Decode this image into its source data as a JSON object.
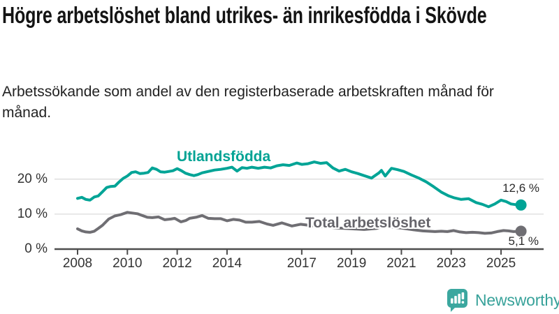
{
  "header": {
    "title": "Högre arbetslöshet bland utrikes- än inrikesfödda i Skövde",
    "subtitle": "Arbetssökande som andel av den registerbaserade arbetskraften månad för månad."
  },
  "chart_data": {
    "type": "line",
    "unit": "%",
    "x_range": [
      2008,
      2025.9
    ],
    "y_range": [
      0,
      26
    ],
    "grid": "horizontal",
    "y_ticks": [
      {
        "value": 20,
        "label": "20 %"
      },
      {
        "value": 10,
        "label": "10 %"
      },
      {
        "value": 0,
        "label": "0 %"
      }
    ],
    "x_ticks": [
      {
        "year": 2008,
        "label": "2008"
      },
      {
        "year": 2010,
        "label": "2010"
      },
      {
        "year": 2012,
        "label": "2012"
      },
      {
        "year": 2014,
        "label": "2014"
      },
      {
        "year": 2017,
        "label": "2017"
      },
      {
        "year": 2019,
        "label": "2019"
      },
      {
        "year": 2021,
        "label": "2021"
      },
      {
        "year": 2023,
        "label": "2023"
      },
      {
        "year": 2025,
        "label": "2025"
      }
    ],
    "colors": {
      "teal": "#00a496",
      "gray": "#6f6e73",
      "gridline": "#dcdcdc",
      "axis": "#4d4d4d"
    },
    "series": [
      {
        "name": "Utlandsfödda",
        "color": "#00a496",
        "end_label": "12,6 %",
        "end_value": 12.6,
        "points": [
          [
            2008.0,
            14.5
          ],
          [
            2008.17,
            14.8
          ],
          [
            2008.33,
            14.2
          ],
          [
            2008.5,
            14.0
          ],
          [
            2008.67,
            14.9
          ],
          [
            2008.83,
            15.2
          ],
          [
            2009.0,
            16.4
          ],
          [
            2009.17,
            17.6
          ],
          [
            2009.33,
            17.9
          ],
          [
            2009.5,
            18.0
          ],
          [
            2009.67,
            19.2
          ],
          [
            2009.83,
            20.2
          ],
          [
            2010.0,
            20.9
          ],
          [
            2010.17,
            21.9
          ],
          [
            2010.33,
            22.1
          ],
          [
            2010.5,
            21.6
          ],
          [
            2010.67,
            21.7
          ],
          [
            2010.83,
            21.9
          ],
          [
            2011.0,
            23.2
          ],
          [
            2011.17,
            22.8
          ],
          [
            2011.33,
            22.1
          ],
          [
            2011.5,
            22.0
          ],
          [
            2011.67,
            22.2
          ],
          [
            2011.83,
            22.4
          ],
          [
            2012.0,
            23.0
          ],
          [
            2012.17,
            22.4
          ],
          [
            2012.33,
            21.7
          ],
          [
            2012.5,
            21.3
          ],
          [
            2012.67,
            21.0
          ],
          [
            2012.83,
            21.3
          ],
          [
            2013.0,
            21.8
          ],
          [
            2013.25,
            22.2
          ],
          [
            2013.5,
            22.6
          ],
          [
            2013.75,
            22.8
          ],
          [
            2014.0,
            23.1
          ],
          [
            2014.2,
            23.4
          ],
          [
            2014.4,
            22.3
          ],
          [
            2014.6,
            23.3
          ],
          [
            2014.8,
            23.1
          ],
          [
            2015.0,
            23.4
          ],
          [
            2015.25,
            23.1
          ],
          [
            2015.5,
            23.4
          ],
          [
            2015.75,
            23.2
          ],
          [
            2016.0,
            23.8
          ],
          [
            2016.25,
            24.1
          ],
          [
            2016.5,
            23.9
          ],
          [
            2016.8,
            24.6
          ],
          [
            2017.0,
            24.2
          ],
          [
            2017.25,
            24.4
          ],
          [
            2017.5,
            24.9
          ],
          [
            2017.75,
            24.5
          ],
          [
            2018.0,
            24.7
          ],
          [
            2018.25,
            23.2
          ],
          [
            2018.5,
            22.3
          ],
          [
            2018.75,
            22.8
          ],
          [
            2019.0,
            22.1
          ],
          [
            2019.25,
            21.6
          ],
          [
            2019.5,
            21.0
          ],
          [
            2019.8,
            20.3
          ],
          [
            2020.1,
            21.8
          ],
          [
            2020.2,
            22.5
          ],
          [
            2020.35,
            20.9
          ],
          [
            2020.6,
            23.1
          ],
          [
            2020.85,
            22.7
          ],
          [
            2021.1,
            22.2
          ],
          [
            2021.4,
            21.2
          ],
          [
            2021.7,
            20.3
          ],
          [
            2022.0,
            19.2
          ],
          [
            2022.3,
            17.8
          ],
          [
            2022.6,
            16.3
          ],
          [
            2022.9,
            15.2
          ],
          [
            2023.1,
            14.7
          ],
          [
            2023.4,
            14.2
          ],
          [
            2023.7,
            14.4
          ],
          [
            2024.0,
            13.3
          ],
          [
            2024.25,
            12.8
          ],
          [
            2024.5,
            12.1
          ],
          [
            2024.75,
            12.9
          ],
          [
            2025.0,
            14.0
          ],
          [
            2025.2,
            13.6
          ],
          [
            2025.4,
            12.9
          ],
          [
            2025.6,
            12.7
          ],
          [
            2025.8,
            12.6
          ]
        ]
      },
      {
        "name": "Total arbetslöshet",
        "color": "#6f6e73",
        "end_label": "5,1 %",
        "end_value": 5.1,
        "points": [
          [
            2008.0,
            5.8
          ],
          [
            2008.17,
            5.2
          ],
          [
            2008.33,
            4.9
          ],
          [
            2008.5,
            4.8
          ],
          [
            2008.67,
            5.1
          ],
          [
            2008.83,
            5.9
          ],
          [
            2009.0,
            6.8
          ],
          [
            2009.25,
            8.6
          ],
          [
            2009.5,
            9.5
          ],
          [
            2009.75,
            9.9
          ],
          [
            2010.0,
            10.5
          ],
          [
            2010.2,
            10.3
          ],
          [
            2010.4,
            10.1
          ],
          [
            2010.6,
            9.6
          ],
          [
            2010.8,
            9.1
          ],
          [
            2011.0,
            9.0
          ],
          [
            2011.25,
            9.2
          ],
          [
            2011.5,
            8.4
          ],
          [
            2011.75,
            8.6
          ],
          [
            2011.9,
            8.8
          ],
          [
            2012.15,
            7.8
          ],
          [
            2012.35,
            8.2
          ],
          [
            2012.5,
            8.8
          ],
          [
            2012.75,
            9.1
          ],
          [
            2013.0,
            9.6
          ],
          [
            2013.25,
            8.8
          ],
          [
            2013.5,
            8.7
          ],
          [
            2013.75,
            8.7
          ],
          [
            2014.0,
            8.1
          ],
          [
            2014.25,
            8.5
          ],
          [
            2014.5,
            8.3
          ],
          [
            2014.75,
            7.7
          ],
          [
            2015.0,
            7.7
          ],
          [
            2015.3,
            7.9
          ],
          [
            2015.6,
            7.2
          ],
          [
            2015.85,
            6.8
          ],
          [
            2016.2,
            7.5
          ],
          [
            2016.6,
            6.6
          ],
          [
            2016.95,
            7.1
          ],
          [
            2017.3,
            6.8
          ],
          [
            2017.6,
            6.5
          ],
          [
            2018.0,
            6.3
          ],
          [
            2018.5,
            6.0
          ],
          [
            2019.0,
            5.8
          ],
          [
            2019.5,
            5.6
          ],
          [
            2020.0,
            5.9
          ],
          [
            2020.3,
            6.6
          ],
          [
            2020.6,
            6.3
          ],
          [
            2021.0,
            6.0
          ],
          [
            2021.5,
            5.5
          ],
          [
            2021.85,
            5.2
          ],
          [
            2022.1,
            5.1
          ],
          [
            2022.35,
            5.0
          ],
          [
            2022.6,
            5.1
          ],
          [
            2022.85,
            5.0
          ],
          [
            2023.1,
            5.3
          ],
          [
            2023.35,
            4.9
          ],
          [
            2023.6,
            4.7
          ],
          [
            2023.85,
            4.8
          ],
          [
            2024.1,
            4.7
          ],
          [
            2024.35,
            4.5
          ],
          [
            2024.6,
            4.6
          ],
          [
            2024.85,
            5.0
          ],
          [
            2025.1,
            5.3
          ],
          [
            2025.3,
            5.2
          ],
          [
            2025.5,
            5.0
          ],
          [
            2025.8,
            5.1
          ]
        ]
      }
    ]
  },
  "footer": {
    "brand": "Newsworthy"
  }
}
